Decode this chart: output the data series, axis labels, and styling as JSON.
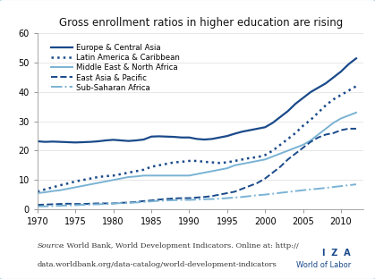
{
  "title": "Gross enrollment ratios in higher education are rising",
  "xlim": [
    1970,
    2013
  ],
  "ylim": [
    0,
    60
  ],
  "yticks": [
    0,
    10,
    20,
    30,
    40,
    50,
    60
  ],
  "xticks": [
    1970,
    1975,
    1980,
    1985,
    1990,
    1995,
    2000,
    2005,
    2010
  ],
  "background_color": "#ffffff",
  "source_text_italic": "Source",
  "source_text_normal": " : World Bank, World Development Indicators. Online at: http://\ndata.worldbank.org/data-catalog/world-development-indicators",
  "series": {
    "Europe & Central Asia": {
      "color": "#1a4a8a",
      "linestyle": "solid",
      "linewidth": 1.6,
      "years": [
        1970,
        1971,
        1972,
        1973,
        1974,
        1975,
        1976,
        1977,
        1978,
        1979,
        1980,
        1981,
        1982,
        1983,
        1984,
        1985,
        1986,
        1987,
        1988,
        1989,
        1990,
        1991,
        1992,
        1993,
        1994,
        1995,
        1996,
        1997,
        1998,
        1999,
        2000,
        2001,
        2002,
        2003,
        2004,
        2005,
        2006,
        2007,
        2008,
        2009,
        2010,
        2011,
        2012
      ],
      "values": [
        23.2,
        23.0,
        23.1,
        23.0,
        22.9,
        22.8,
        22.9,
        23.0,
        23.2,
        23.5,
        23.7,
        23.5,
        23.3,
        23.5,
        23.8,
        24.8,
        24.9,
        24.8,
        24.7,
        24.5,
        24.5,
        24.0,
        23.8,
        24.0,
        24.5,
        25.0,
        25.8,
        26.5,
        27.0,
        27.5,
        28.0,
        29.5,
        31.5,
        33.5,
        36.0,
        38.0,
        40.0,
        41.5,
        43.0,
        45.0,
        47.0,
        49.5,
        51.5
      ]
    },
    "Latin America & Caribbean": {
      "color": "#1a4a8a",
      "linestyle": "dotted",
      "linewidth": 1.8,
      "years": [
        1970,
        1971,
        1972,
        1973,
        1974,
        1975,
        1976,
        1977,
        1978,
        1979,
        1980,
        1981,
        1982,
        1983,
        1984,
        1985,
        1986,
        1987,
        1988,
        1989,
        1990,
        1991,
        1992,
        1993,
        1994,
        1995,
        1996,
        1997,
        1998,
        1999,
        2000,
        2001,
        2002,
        2003,
        2004,
        2005,
        2006,
        2007,
        2008,
        2009,
        2010,
        2011,
        2012
      ],
      "values": [
        6.0,
        6.8,
        7.5,
        8.2,
        8.8,
        9.5,
        10.0,
        10.5,
        11.0,
        11.3,
        11.5,
        12.0,
        12.5,
        13.0,
        13.5,
        14.5,
        15.0,
        15.5,
        16.0,
        16.2,
        16.5,
        16.5,
        16.2,
        16.0,
        15.8,
        16.0,
        16.5,
        17.0,
        17.5,
        17.8,
        18.5,
        20.0,
        22.0,
        24.0,
        26.0,
        28.5,
        30.5,
        33.0,
        35.5,
        37.5,
        39.0,
        40.5,
        42.0
      ]
    },
    "Middle East & North Africa": {
      "color": "#7ab3d4",
      "linestyle": "solid",
      "linewidth": 1.4,
      "years": [
        1970,
        1971,
        1972,
        1973,
        1974,
        1975,
        1976,
        1977,
        1978,
        1979,
        1980,
        1981,
        1982,
        1983,
        1984,
        1985,
        1986,
        1987,
        1988,
        1989,
        1990,
        1991,
        1992,
        1993,
        1994,
        1995,
        1996,
        1997,
        1998,
        1999,
        2000,
        2001,
        2002,
        2003,
        2004,
        2005,
        2006,
        2007,
        2008,
        2009,
        2010,
        2011,
        2012
      ],
      "values": [
        5.5,
        5.8,
        6.2,
        6.5,
        7.0,
        7.5,
        8.0,
        8.5,
        9.0,
        9.5,
        10.0,
        10.5,
        11.0,
        11.2,
        11.5,
        11.5,
        11.5,
        11.5,
        11.5,
        11.5,
        11.5,
        12.0,
        12.5,
        13.0,
        13.5,
        14.0,
        15.0,
        15.5,
        16.0,
        16.5,
        17.0,
        18.0,
        19.0,
        20.0,
        21.0,
        22.0,
        23.5,
        25.5,
        27.5,
        29.5,
        31.0,
        32.0,
        33.0
      ]
    },
    "East Asia & Pacific": {
      "color": "#1a4a8a",
      "linestyle": "dashed",
      "linewidth": 1.4,
      "years": [
        1970,
        1971,
        1972,
        1973,
        1974,
        1975,
        1976,
        1977,
        1978,
        1979,
        1980,
        1981,
        1982,
        1983,
        1984,
        1985,
        1986,
        1987,
        1988,
        1989,
        1990,
        1991,
        1992,
        1993,
        1994,
        1995,
        1996,
        1997,
        1998,
        1999,
        2000,
        2001,
        2002,
        2003,
        2004,
        2005,
        2006,
        2007,
        2008,
        2009,
        2010,
        2011,
        2012
      ],
      "values": [
        1.5,
        1.6,
        1.7,
        1.8,
        1.9,
        1.8,
        1.8,
        1.9,
        2.0,
        2.0,
        2.0,
        2.2,
        2.3,
        2.5,
        2.8,
        3.0,
        3.3,
        3.5,
        3.7,
        3.8,
        3.8,
        4.0,
        4.2,
        4.5,
        5.0,
        5.5,
        6.0,
        7.0,
        8.0,
        9.0,
        10.5,
        12.5,
        14.5,
        17.0,
        19.0,
        21.0,
        23.0,
        24.5,
        25.5,
        26.0,
        27.0,
        27.5,
        27.5
      ]
    },
    "Sub-Saharan Africa": {
      "color": "#7ab3d4",
      "linestyle": "dashdot",
      "linewidth": 1.4,
      "years": [
        1970,
        1971,
        1972,
        1973,
        1974,
        1975,
        1976,
        1977,
        1978,
        1979,
        1980,
        1981,
        1982,
        1983,
        1984,
        1985,
        1986,
        1987,
        1988,
        1989,
        1990,
        1991,
        1992,
        1993,
        1994,
        1995,
        1996,
        1997,
        1998,
        1999,
        2000,
        2001,
        2002,
        2003,
        2004,
        2005,
        2006,
        2007,
        2008,
        2009,
        2010,
        2011,
        2012
      ],
      "values": [
        1.0,
        1.0,
        1.1,
        1.2,
        1.3,
        1.4,
        1.5,
        1.6,
        1.7,
        1.8,
        2.0,
        2.1,
        2.2,
        2.3,
        2.5,
        2.7,
        2.9,
        3.0,
        3.1,
        3.2,
        3.2,
        3.3,
        3.4,
        3.5,
        3.6,
        3.8,
        4.0,
        4.2,
        4.5,
        4.8,
        5.0,
        5.3,
        5.6,
        5.9,
        6.2,
        6.5,
        6.8,
        7.0,
        7.3,
        7.6,
        7.9,
        8.2,
        8.5
      ]
    }
  }
}
